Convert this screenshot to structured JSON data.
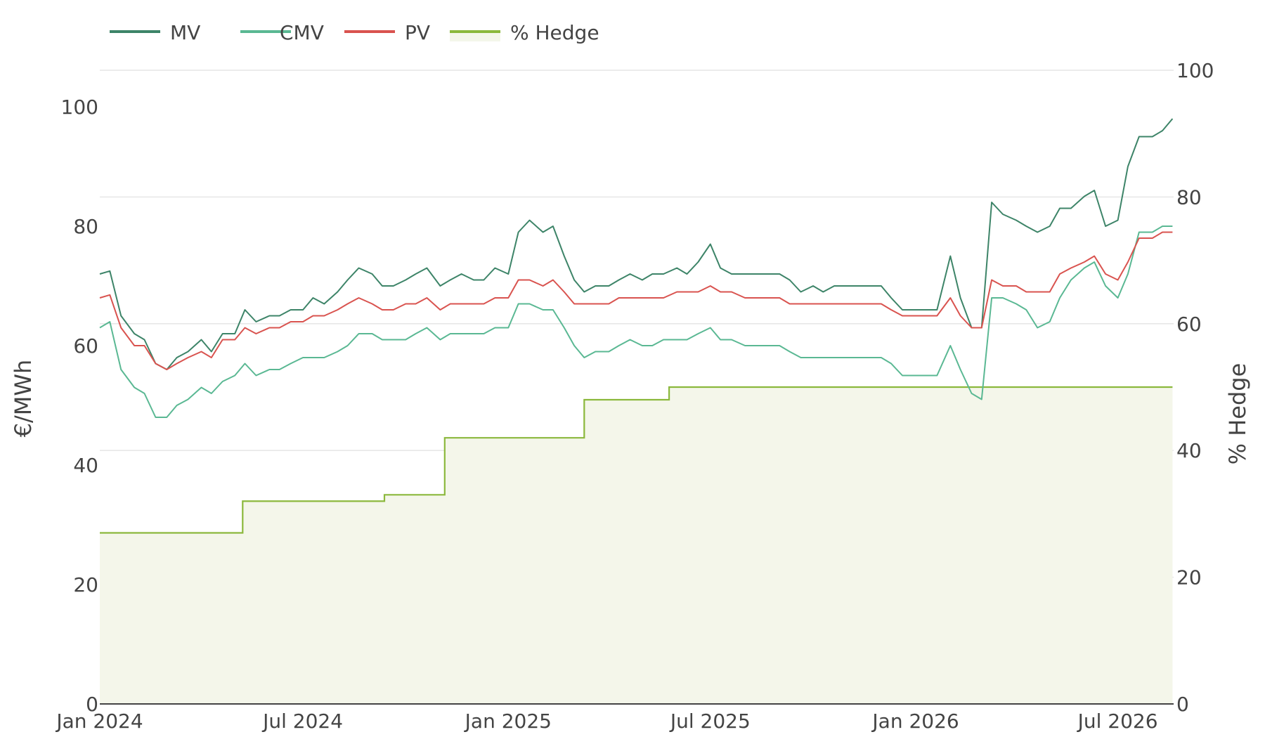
{
  "chart_data": {
    "type": "line",
    "title": "",
    "legend": {
      "placement": "top-left",
      "orientation": "horizontal",
      "items": [
        "MV",
        "CMV",
        "PV",
        "% Hedge"
      ]
    },
    "grid": {
      "x": false,
      "y": true
    },
    "x_axis": {
      "label": "",
      "type": "date",
      "range": [
        "2024-01-01",
        "2026-08-20"
      ],
      "ticks": [
        {
          "date": "2024-01-01",
          "label": "Jan 2024"
        },
        {
          "date": "2024-07-01",
          "label": "Jul 2024"
        },
        {
          "date": "2025-01-01",
          "label": "Jan 2025"
        },
        {
          "date": "2025-07-01",
          "label": "Jul 2025"
        },
        {
          "date": "2026-01-01",
          "label": "Jan 2026"
        },
        {
          "date": "2026-07-01",
          "label": "Jul 2026"
        }
      ]
    },
    "y_axis_left": {
      "label": "€/MWh",
      "range": [
        0,
        100
      ],
      "ticks": [
        0,
        20,
        40,
        60,
        80,
        100
      ]
    },
    "y_axis_right": {
      "label": "% Hedge",
      "range": [
        0,
        100
      ],
      "ticks": [
        0,
        20,
        40,
        60,
        80,
        100
      ]
    },
    "series": [
      {
        "name": "MV",
        "axis": "left",
        "color": "#3d8468",
        "x": [
          "2024-01-01",
          "2024-01-10",
          "2024-01-20",
          "2024-02-01",
          "2024-02-10",
          "2024-02-20",
          "2024-03-01",
          "2024-03-10",
          "2024-03-20",
          "2024-04-01",
          "2024-04-10",
          "2024-04-20",
          "2024-05-01",
          "2024-05-10",
          "2024-05-20",
          "2024-06-01",
          "2024-06-10",
          "2024-06-20",
          "2024-07-01",
          "2024-07-10",
          "2024-07-20",
          "2024-08-01",
          "2024-08-10",
          "2024-08-20",
          "2024-09-01",
          "2024-09-10",
          "2024-09-20",
          "2024-10-01",
          "2024-10-10",
          "2024-10-20",
          "2024-11-01",
          "2024-11-10",
          "2024-11-20",
          "2024-12-01",
          "2024-12-10",
          "2024-12-20",
          "2025-01-01",
          "2025-01-10",
          "2025-01-20",
          "2025-02-01",
          "2025-02-10",
          "2025-02-20",
          "2025-03-01",
          "2025-03-10",
          "2025-03-20",
          "2025-04-01",
          "2025-04-10",
          "2025-04-20",
          "2025-05-01",
          "2025-05-10",
          "2025-05-20",
          "2025-06-01",
          "2025-06-10",
          "2025-06-20",
          "2025-07-01",
          "2025-07-10",
          "2025-07-20",
          "2025-08-01",
          "2025-08-10",
          "2025-08-20",
          "2025-09-01",
          "2025-09-10",
          "2025-09-20",
          "2025-10-01",
          "2025-10-10",
          "2025-10-20",
          "2025-11-01",
          "2025-11-10",
          "2025-11-20",
          "2025-12-01",
          "2025-12-10",
          "2025-12-20",
          "2026-01-01",
          "2026-01-10",
          "2026-01-20",
          "2026-02-01",
          "2026-02-10",
          "2026-02-20",
          "2026-03-01",
          "2026-03-10",
          "2026-03-20",
          "2026-04-01",
          "2026-04-10",
          "2026-04-20",
          "2026-05-01",
          "2026-05-10",
          "2026-05-20",
          "2026-06-01",
          "2026-06-10",
          "2026-06-20",
          "2026-07-01",
          "2026-07-10",
          "2026-07-20",
          "2026-08-01",
          "2026-08-10",
          "2026-08-19"
        ],
        "y": [
          72,
          72.5,
          65,
          62,
          61,
          57,
          56,
          58,
          59,
          61,
          59,
          62,
          62,
          66,
          64,
          65,
          65,
          66,
          66,
          68,
          67,
          69,
          71,
          73,
          72,
          70,
          70,
          71,
          72,
          73,
          70,
          71,
          72,
          71,
          71,
          73,
          72,
          79,
          81,
          79,
          80,
          75,
          71,
          69,
          70,
          70,
          71,
          72,
          71,
          72,
          72,
          73,
          72,
          74,
          77,
          73,
          72,
          72,
          72,
          72,
          72,
          71,
          69,
          70,
          69,
          70,
          70,
          70,
          70,
          70,
          68,
          66,
          66,
          66,
          66,
          75,
          68,
          63,
          63,
          84,
          82,
          81,
          80,
          79,
          80,
          83,
          83,
          85,
          86,
          80,
          81,
          90,
          95,
          95,
          96,
          98
        ]
      },
      {
        "name": "CMV",
        "axis": "left",
        "color": "#5ab893",
        "x": [
          "2024-01-01",
          "2024-01-10",
          "2024-01-20",
          "2024-02-01",
          "2024-02-10",
          "2024-02-20",
          "2024-03-01",
          "2024-03-10",
          "2024-03-20",
          "2024-04-01",
          "2024-04-10",
          "2024-04-20",
          "2024-05-01",
          "2024-05-10",
          "2024-05-20",
          "2024-06-01",
          "2024-06-10",
          "2024-06-20",
          "2024-07-01",
          "2024-07-10",
          "2024-07-20",
          "2024-08-01",
          "2024-08-10",
          "2024-08-20",
          "2024-09-01",
          "2024-09-10",
          "2024-09-20",
          "2024-10-01",
          "2024-10-10",
          "2024-10-20",
          "2024-11-01",
          "2024-11-10",
          "2024-11-20",
          "2024-12-01",
          "2024-12-10",
          "2024-12-20",
          "2025-01-01",
          "2025-01-10",
          "2025-01-20",
          "2025-02-01",
          "2025-02-10",
          "2025-02-20",
          "2025-03-01",
          "2025-03-10",
          "2025-03-20",
          "2025-04-01",
          "2025-04-10",
          "2025-04-20",
          "2025-05-01",
          "2025-05-10",
          "2025-05-20",
          "2025-06-01",
          "2025-06-10",
          "2025-06-20",
          "2025-07-01",
          "2025-07-10",
          "2025-07-20",
          "2025-08-01",
          "2025-08-10",
          "2025-08-20",
          "2025-09-01",
          "2025-09-10",
          "2025-09-20",
          "2025-10-01",
          "2025-10-10",
          "2025-10-20",
          "2025-11-01",
          "2025-11-10",
          "2025-11-20",
          "2025-12-01",
          "2025-12-10",
          "2025-12-20",
          "2026-01-01",
          "2026-01-10",
          "2026-01-20",
          "2026-02-01",
          "2026-02-10",
          "2026-02-20",
          "2026-03-01",
          "2026-03-10",
          "2026-03-20",
          "2026-04-01",
          "2026-04-10",
          "2026-04-20",
          "2026-05-01",
          "2026-05-10",
          "2026-05-20",
          "2026-06-01",
          "2026-06-10",
          "2026-06-20",
          "2026-07-01",
          "2026-07-10",
          "2026-07-20",
          "2026-08-01",
          "2026-08-10",
          "2026-08-19"
        ],
        "y": [
          63,
          64,
          56,
          53,
          52,
          48,
          48,
          50,
          51,
          53,
          52,
          54,
          55,
          57,
          55,
          56,
          56,
          57,
          58,
          58,
          58,
          59,
          60,
          62,
          62,
          61,
          61,
          61,
          62,
          63,
          61,
          62,
          62,
          62,
          62,
          63,
          63,
          67,
          67,
          66,
          66,
          63,
          60,
          58,
          59,
          59,
          60,
          61,
          60,
          60,
          61,
          61,
          61,
          62,
          63,
          61,
          61,
          60,
          60,
          60,
          60,
          59,
          58,
          58,
          58,
          58,
          58,
          58,
          58,
          58,
          57,
          55,
          55,
          55,
          55,
          60,
          56,
          52,
          51,
          68,
          68,
          67,
          66,
          63,
          64,
          68,
          71,
          73,
          74,
          70,
          68,
          72,
          79,
          79,
          80,
          80
        ]
      },
      {
        "name": "PV",
        "axis": "left",
        "color": "#d9534f",
        "x": [
          "2024-01-01",
          "2024-01-10",
          "2024-01-20",
          "2024-02-01",
          "2024-02-10",
          "2024-02-20",
          "2024-03-01",
          "2024-03-10",
          "2024-03-20",
          "2024-04-01",
          "2024-04-10",
          "2024-04-20",
          "2024-05-01",
          "2024-05-10",
          "2024-05-20",
          "2024-06-01",
          "2024-06-10",
          "2024-06-20",
          "2024-07-01",
          "2024-07-10",
          "2024-07-20",
          "2024-08-01",
          "2024-08-10",
          "2024-08-20",
          "2024-09-01",
          "2024-09-10",
          "2024-09-20",
          "2024-10-01",
          "2024-10-10",
          "2024-10-20",
          "2024-11-01",
          "2024-11-10",
          "2024-11-20",
          "2024-12-01",
          "2024-12-10",
          "2024-12-20",
          "2025-01-01",
          "2025-01-10",
          "2025-01-20",
          "2025-02-01",
          "2025-02-10",
          "2025-02-20",
          "2025-03-01",
          "2025-03-10",
          "2025-03-20",
          "2025-04-01",
          "2025-04-10",
          "2025-04-20",
          "2025-05-01",
          "2025-05-10",
          "2025-05-20",
          "2025-06-01",
          "2025-06-10",
          "2025-06-20",
          "2025-07-01",
          "2025-07-10",
          "2025-07-20",
          "2025-08-01",
          "2025-08-10",
          "2025-08-20",
          "2025-09-01",
          "2025-09-10",
          "2025-09-20",
          "2025-10-01",
          "2025-10-10",
          "2025-10-20",
          "2025-11-01",
          "2025-11-10",
          "2025-11-20",
          "2025-12-01",
          "2025-12-10",
          "2025-12-20",
          "2026-01-01",
          "2026-01-10",
          "2026-01-20",
          "2026-02-01",
          "2026-02-10",
          "2026-02-20",
          "2026-03-01",
          "2026-03-10",
          "2026-03-20",
          "2026-04-01",
          "2026-04-10",
          "2026-04-20",
          "2026-05-01",
          "2026-05-10",
          "2026-05-20",
          "2026-06-01",
          "2026-06-10",
          "2026-06-20",
          "2026-07-01",
          "2026-07-10",
          "2026-07-20",
          "2026-08-01",
          "2026-08-10",
          "2026-08-19"
        ],
        "y": [
          68,
          68.5,
          63,
          60,
          60,
          57,
          56,
          57,
          58,
          59,
          58,
          61,
          61,
          63,
          62,
          63,
          63,
          64,
          64,
          65,
          65,
          66,
          67,
          68,
          67,
          66,
          66,
          67,
          67,
          68,
          66,
          67,
          67,
          67,
          67,
          68,
          68,
          71,
          71,
          70,
          71,
          69,
          67,
          67,
          67,
          67,
          68,
          68,
          68,
          68,
          68,
          69,
          69,
          69,
          70,
          69,
          69,
          68,
          68,
          68,
          68,
          67,
          67,
          67,
          67,
          67,
          67,
          67,
          67,
          67,
          66,
          65,
          65,
          65,
          65,
          68,
          65,
          63,
          63,
          71,
          70,
          70,
          69,
          69,
          69,
          72,
          73,
          74,
          75,
          72,
          71,
          74,
          78,
          78,
          79,
          79
        ]
      },
      {
        "name": "% Hedge",
        "axis": "right",
        "color": "#8bb83c",
        "fill": "#f4f6ea",
        "shape": "step",
        "x": [
          "2024-01-01",
          "2024-05-08",
          "2024-09-12",
          "2024-11-05",
          "2025-03-10",
          "2025-05-25",
          "2026-08-19"
        ],
        "y": [
          27,
          32,
          33,
          42,
          48,
          50,
          50
        ]
      }
    ]
  }
}
